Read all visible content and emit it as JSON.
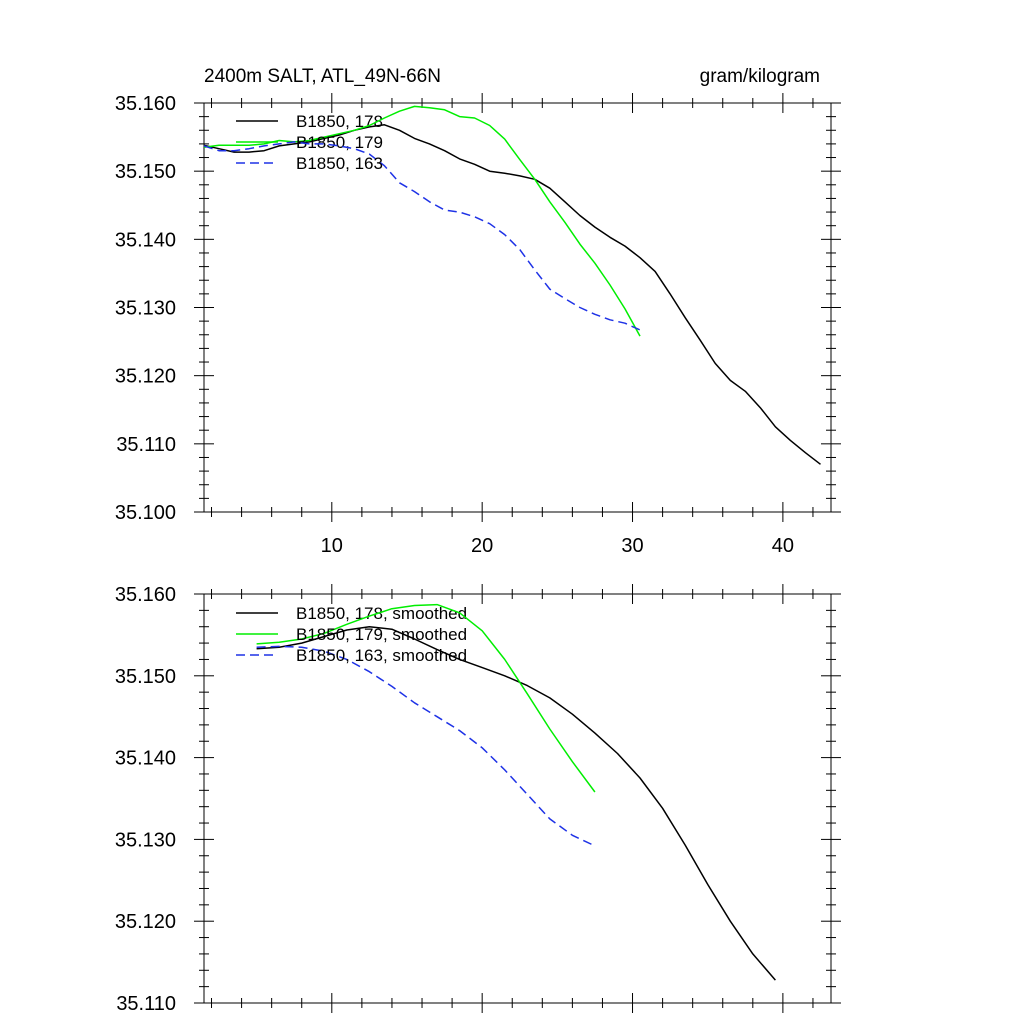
{
  "colors": {
    "black": "#000000",
    "green": "#00ee00",
    "blue": "#1e32e6",
    "background": "#ffffff"
  },
  "chart_data": [
    {
      "type": "line",
      "title": "2400m SALT, ATL_49N-66N",
      "units": "gram/kilogram",
      "xlim": [
        1.5,
        43.2
      ],
      "ylim": [
        35.1,
        35.16
      ],
      "x_ticks": [
        "10",
        "20",
        "30",
        "40"
      ],
      "y_ticks": [
        "35.100",
        "35.110",
        "35.120",
        "35.130",
        "35.140",
        "35.150",
        "35.160"
      ],
      "legend_position": "top-left",
      "series": [
        {
          "name": "B1850, 178",
          "color": "#000000",
          "dash": "solid",
          "x": [
            1.5,
            2.5,
            3.5,
            4.5,
            5.5,
            6.5,
            7.5,
            8.5,
            9.5,
            10.5,
            11.5,
            12.5,
            13.5,
            14.5,
            15.5,
            16.5,
            17.5,
            18.5,
            19.5,
            20.5,
            21.5,
            22.5,
            23.5,
            24.5,
            25.5,
            26.5,
            27.5,
            28.5,
            29.5,
            30.5,
            31.5,
            32.5,
            33.5,
            34.5,
            35.5,
            36.5,
            37.5,
            38.5,
            39.5,
            40.5,
            41.5,
            42.5
          ],
          "y": [
            35.1538,
            35.1533,
            35.1528,
            35.1528,
            35.153,
            35.1537,
            35.154,
            35.1543,
            35.1548,
            35.1553,
            35.156,
            35.1565,
            35.1568,
            35.156,
            35.1548,
            35.154,
            35.153,
            35.1518,
            35.151,
            35.15,
            35.1497,
            35.1493,
            35.1488,
            35.1475,
            35.1455,
            35.1435,
            35.1418,
            35.1403,
            35.139,
            35.1373,
            35.1353,
            35.132,
            35.1285,
            35.1252,
            35.1218,
            35.1193,
            35.1177,
            35.1153,
            35.1125,
            35.1105,
            35.1087,
            35.107
          ]
        },
        {
          "name": "B1850, 179",
          "color": "#00ee00",
          "dash": "solid",
          "x": [
            1.5,
            2.5,
            3.5,
            4.5,
            5.5,
            6.5,
            7.5,
            8.5,
            9.5,
            10.5,
            11.5,
            12.5,
            13.5,
            14.5,
            15.5,
            16.5,
            17.5,
            18.5,
            19.5,
            20.5,
            21.5,
            22.5,
            23.5,
            24.5,
            25.5,
            26.5,
            27.5,
            28.5,
            29.5,
            30.5
          ],
          "y": [
            35.1535,
            35.1538,
            35.1538,
            35.1538,
            35.154,
            35.1545,
            35.1543,
            35.1545,
            35.155,
            35.1555,
            35.156,
            35.1567,
            35.1578,
            35.1588,
            35.1595,
            35.1593,
            35.159,
            35.158,
            35.1578,
            35.1567,
            35.1547,
            35.1517,
            35.1488,
            35.1455,
            35.1425,
            35.1393,
            35.1365,
            35.1333,
            35.1298,
            35.1258
          ]
        },
        {
          "name": "B1850, 163",
          "color": "#1e32e6",
          "dash": "dashed",
          "x": [
            1.5,
            2.5,
            3.5,
            4.5,
            5.5,
            6.5,
            7.5,
            8.5,
            9.5,
            10.5,
            11.5,
            12.5,
            13.5,
            14.5,
            15.5,
            16.5,
            17.5,
            18.5,
            19.5,
            20.5,
            21.5,
            22.5,
            23.5,
            24.5,
            25.5,
            26.5,
            27.5,
            28.5,
            29.5,
            30.5
          ],
          "y": [
            35.1537,
            35.153,
            35.153,
            35.1533,
            35.1537,
            35.154,
            35.1543,
            35.154,
            35.154,
            35.1537,
            35.1533,
            35.1525,
            35.1508,
            35.1483,
            35.147,
            35.1455,
            35.1443,
            35.144,
            35.1433,
            35.1423,
            35.1407,
            35.1385,
            35.1355,
            35.1327,
            35.1313,
            35.13,
            35.129,
            35.1282,
            35.1277,
            35.1267
          ]
        }
      ]
    },
    {
      "type": "line",
      "xlim": [
        1.5,
        43.2
      ],
      "ylim": [
        35.11,
        35.16
      ],
      "y_ticks": [
        "35.110",
        "35.120",
        "35.130",
        "35.140",
        "35.150",
        "35.160"
      ],
      "legend_position": "top-left",
      "series": [
        {
          "name": "B1850, 178, smoothed",
          "color": "#000000",
          "dash": "solid",
          "x": [
            5.0,
            6.5,
            8.0,
            9.5,
            11.0,
            12.5,
            14.0,
            15.5,
            17.0,
            18.5,
            20.0,
            21.5,
            23.0,
            24.5,
            26.0,
            27.5,
            29.0,
            30.5,
            32.0,
            33.5,
            35.0,
            36.5,
            38.0,
            39.5
          ],
          "y": [
            35.1533,
            35.1535,
            35.154,
            35.1548,
            35.1556,
            35.156,
            35.1557,
            35.1545,
            35.1532,
            35.152,
            35.151,
            35.15,
            35.1488,
            35.1473,
            35.1453,
            35.143,
            35.1405,
            35.1375,
            35.1338,
            35.1293,
            35.1245,
            35.12,
            35.116,
            35.1128
          ]
        },
        {
          "name": "B1850, 179, smoothed",
          "color": "#00ee00",
          "dash": "solid",
          "x": [
            5.0,
            6.5,
            8.0,
            9.5,
            11.0,
            12.5,
            14.0,
            15.5,
            17.0,
            18.5,
            20.0,
            21.5,
            23.0,
            24.5,
            26.0,
            27.5
          ],
          "y": [
            35.1539,
            35.1541,
            35.1545,
            35.1552,
            35.1563,
            35.1573,
            35.1582,
            35.1586,
            35.1587,
            35.1577,
            35.1555,
            35.152,
            35.1478,
            35.1435,
            35.1395,
            35.1358
          ]
        },
        {
          "name": "B1850, 163, smoothed",
          "color": "#1e32e6",
          "dash": "dashed",
          "x": [
            5.0,
            6.5,
            8.0,
            9.5,
            11.0,
            12.5,
            14.0,
            15.5,
            17.0,
            18.5,
            20.0,
            21.5,
            23.0,
            24.5,
            26.0,
            27.5
          ],
          "y": [
            35.1535,
            35.1536,
            35.1535,
            35.153,
            35.152,
            35.1505,
            35.1487,
            35.1467,
            35.145,
            35.1433,
            35.1412,
            35.1385,
            35.1355,
            35.1325,
            35.1305,
            35.1292
          ]
        }
      ]
    }
  ]
}
